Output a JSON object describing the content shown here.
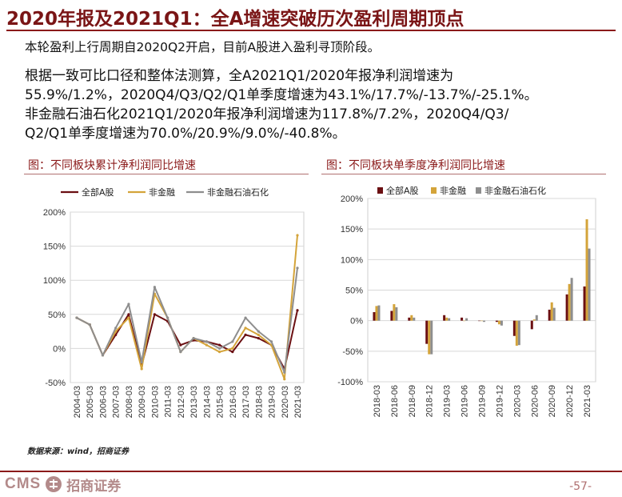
{
  "title": "2020年报及2021Q1：全A增速突破历次盈利周期顶点",
  "body": {
    "line1": "本轮盈利上行周期自2020Q2开启，目前A股进入盈利寻顶阶段。",
    "line2": "根据一致可比口径和整体法测算，全A2021Q1/2020年报净利润增速为",
    "line3": "55.9%/1.2%，2020Q4/Q3/Q2/Q1单季度增速为43.1%/17.7%/-13.7%/-25.1%。",
    "line4": "非金融石油石化2021Q1/2020年报净利润增速为117.8%/7.2%，2020Q4/Q3/",
    "line5": "Q2/Q1单季度增速为70.0%/20.9%/9.0%/-40.8%。"
  },
  "source": "数据来源：wind，招商证券",
  "footer": {
    "logo_text": "CMS",
    "logo_cn": "招商证券",
    "page": "-57-"
  },
  "colors": {
    "all_a": "#6b0f12",
    "non_fin": "#d4a43a",
    "non_fin_ex": "#8e8e8e"
  },
  "chart_data": [
    {
      "type": "line",
      "title": "图：不同板块累计净利润同比增速",
      "x": [
        "2004-03",
        "2005-03",
        "2006-03",
        "2007-03",
        "2008-03",
        "2009-03",
        "2010-03",
        "2011-03",
        "2012-03",
        "2013-03",
        "2014-03",
        "2015-03",
        "2016-03",
        "2017-03",
        "2018-03",
        "2019-03",
        "2020-03",
        "2021-03"
      ],
      "y_ticks": [
        "200%",
        "150%",
        "100%",
        "50%",
        "0%",
        "-50%"
      ],
      "ylim": [
        -50,
        200
      ],
      "grid": true,
      "legend_position": "top",
      "series": [
        {
          "name": "全部A股",
          "values": [
            45,
            35,
            -10,
            20,
            50,
            -25,
            50,
            40,
            5,
            12,
            10,
            5,
            -5,
            20,
            15,
            5,
            -30,
            56
          ]
        },
        {
          "name": "非金融",
          "values": [
            45,
            35,
            -10,
            25,
            45,
            -30,
            80,
            45,
            -5,
            15,
            5,
            -5,
            0,
            30,
            20,
            5,
            -45,
            166
          ]
        },
        {
          "name": "非金融石油石化",
          "values": [
            45,
            35,
            -10,
            30,
            65,
            -20,
            90,
            45,
            -5,
            15,
            10,
            0,
            10,
            45,
            25,
            10,
            -35,
            118
          ]
        }
      ]
    },
    {
      "type": "bar",
      "title": "图：不同板块单季度净利润同比增速",
      "categories": [
        "2018-03",
        "2018-06",
        "2018-09",
        "2018-12",
        "2019-03",
        "2019-06",
        "2019-09",
        "2019-12",
        "2020-03",
        "2020-06",
        "2020-09",
        "2020-12",
        "2021-03"
      ],
      "y_ticks": [
        "200%",
        "150%",
        "100%",
        "50%",
        "0%",
        "-50%",
        "-100%"
      ],
      "ylim": [
        -100,
        200
      ],
      "grid": true,
      "legend_position": "top",
      "series": [
        {
          "name": "全部A股",
          "values": [
            14,
            16,
            5,
            -38,
            9,
            5,
            0,
            -2,
            -25,
            -14,
            18,
            43,
            56
          ]
        },
        {
          "name": "非金融",
          "values": [
            24,
            27,
            9,
            -55,
            5,
            0,
            0,
            -6,
            -41,
            2,
            30,
            60,
            166
          ]
        },
        {
          "name": "非金融石油石化",
          "values": [
            25,
            22,
            5,
            -55,
            4,
            4,
            -2,
            -8,
            -40,
            9,
            21,
            70,
            118
          ]
        }
      ]
    }
  ]
}
